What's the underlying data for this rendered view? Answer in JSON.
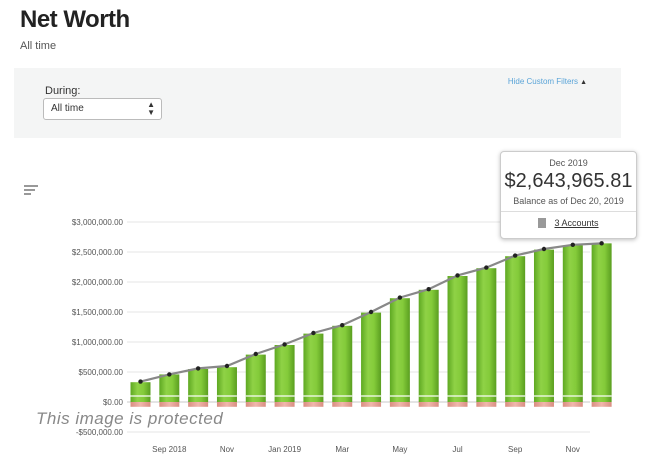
{
  "header": {
    "title": "Net Worth",
    "subtitle": "All time"
  },
  "filters": {
    "during_label": "During:",
    "during_value": "All time",
    "hide_label": "Hide Custom Filters"
  },
  "tooltip": {
    "period": "Dec 2019",
    "amount": "$2,643,965.81",
    "as_of": "Balance as of Dec 20, 2019",
    "accounts": "3 Accounts"
  },
  "overlay": {
    "protected_text": "This image is protected"
  },
  "colors": {
    "bar_green": "#7cc530",
    "negative_red": "#e8a79c",
    "line_gray": "#888888",
    "point_dark": "#222222",
    "link_blue": "#5aa4d8"
  },
  "chart_data": {
    "type": "bar",
    "y_tick_labels": [
      "-$500,000.00",
      "$0.00",
      "$500,000.00",
      "$1,000,000.00",
      "$1,500,000.00",
      "$2,000,000.00",
      "$2,500,000.00",
      "$3,000,000.00"
    ],
    "y_ticks": [
      -500000,
      0,
      500000,
      1000000,
      1500000,
      2000000,
      2500000,
      3000000
    ],
    "ylim": [
      -500000,
      3000000
    ],
    "x_tick_labels": [
      "Sep 2018",
      "Nov",
      "Jan 2019",
      "Mar",
      "May",
      "Jul",
      "Sep",
      "Nov"
    ],
    "x": [
      "Aug 2018",
      "Sep 2018",
      "Oct 2018",
      "Nov 2018",
      "Dec 2018",
      "Jan 2019",
      "Feb 2019",
      "Mar 2019",
      "Apr 2019",
      "May 2019",
      "Jun 2019",
      "Jul 2019",
      "Aug 2019",
      "Sep 2019",
      "Oct 2019",
      "Nov 2019",
      "Dec 2019"
    ],
    "series": [
      {
        "kind": "bar",
        "values": [
          330000,
          460000,
          550000,
          580000,
          790000,
          950000,
          1140000,
          1270000,
          1490000,
          1730000,
          1870000,
          2100000,
          2230000,
          2430000,
          2540000,
          2610000,
          2643965.81
        ]
      },
      {
        "kind": "bar-negative",
        "values": [
          -80000,
          -80000,
          -80000,
          -80000,
          -80000,
          -80000,
          -80000,
          -80000,
          -80000,
          -80000,
          -80000,
          -80000,
          -80000,
          -80000,
          -80000,
          -80000,
          -80000
        ]
      },
      {
        "kind": "line",
        "values": [
          340000,
          460000,
          560000,
          600000,
          800000,
          960000,
          1150000,
          1280000,
          1500000,
          1740000,
          1880000,
          2110000,
          2240000,
          2440000,
          2550000,
          2620000,
          2643965.81
        ]
      }
    ]
  }
}
